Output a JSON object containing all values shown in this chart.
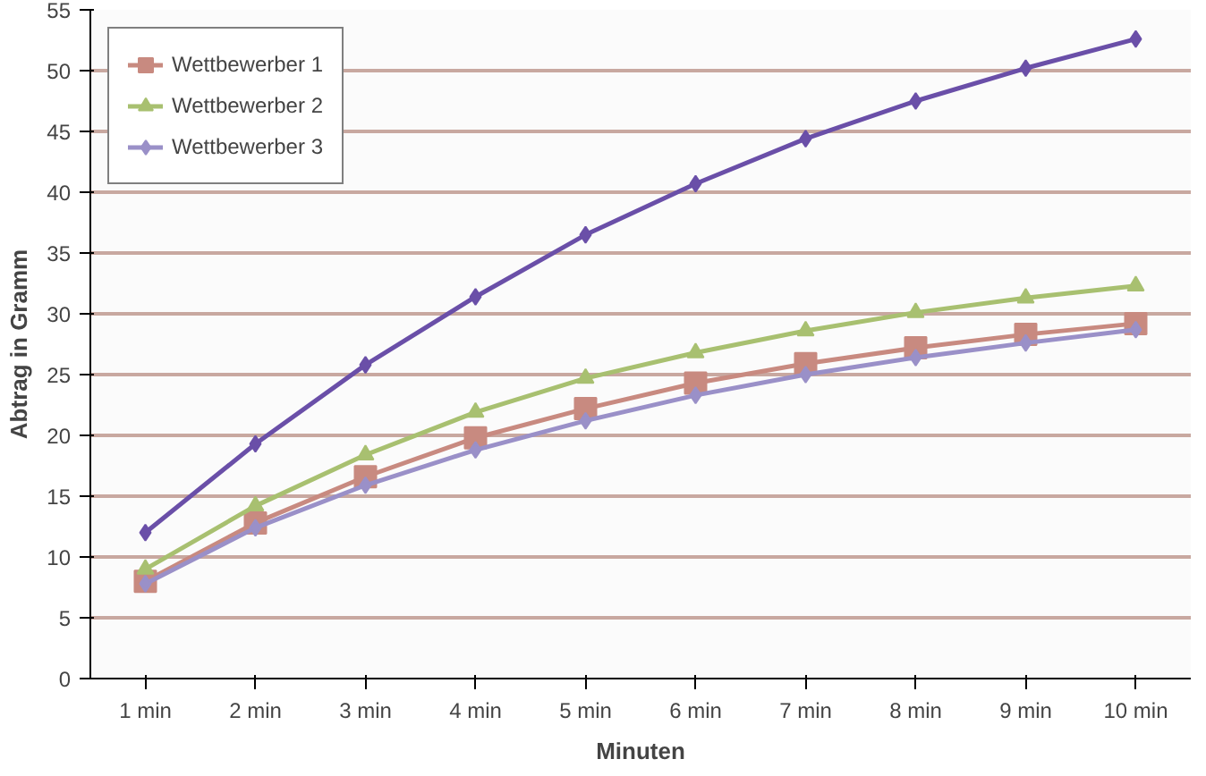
{
  "chart_data": {
    "type": "line",
    "xlabel": "Minuten",
    "ylabel": "Abtrag in Gramm",
    "categories": [
      "1 min",
      "2 min",
      "3 min",
      "4 min",
      "5 min",
      "6 min",
      "7 min",
      "8 min",
      "9 min",
      "10 min"
    ],
    "ylim": [
      0,
      55
    ],
    "yticks": [
      0,
      5,
      10,
      15,
      20,
      25,
      30,
      35,
      40,
      45,
      50,
      55
    ],
    "grid": "y",
    "legend": "top left",
    "series": [
      {
        "color": "#6a4fa8",
        "marker": "diamond",
        "values": [
          12,
          19.3,
          25.8,
          31.4,
          36.5,
          40.7,
          44.4,
          47.5,
          50.2,
          52.6
        ]
      },
      {
        "name": "Wettbewerber 1",
        "color": "#c88a80",
        "marker": "square",
        "values": [
          8,
          12.8,
          16.6,
          19.8,
          22.2,
          24.3,
          25.9,
          27.2,
          28.3,
          29.2
        ]
      },
      {
        "name": "Wettbewerber 2",
        "color": "#a8c070",
        "marker": "triangle",
        "values": [
          9,
          14.2,
          18.4,
          21.9,
          24.7,
          26.8,
          28.6,
          30.1,
          31.3,
          32.3
        ]
      },
      {
        "name": "Wettbewerber 3",
        "color": "#9a90c8",
        "marker": "diamond",
        "values": [
          7.8,
          12.4,
          15.9,
          18.8,
          21.2,
          23.3,
          25.0,
          26.4,
          27.6,
          28.7
        ]
      }
    ]
  }
}
